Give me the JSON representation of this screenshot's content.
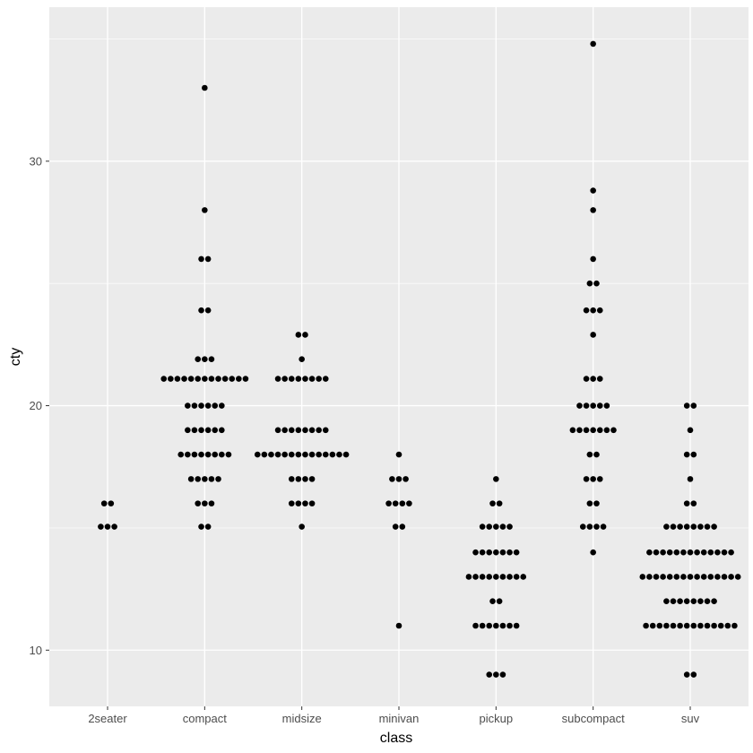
{
  "chart_data": {
    "type": "dotplot",
    "xlabel": "class",
    "ylabel": "cty",
    "categories": [
      "2seater",
      "compact",
      "midsize",
      "minivan",
      "pickup",
      "subcompact",
      "suv"
    ],
    "ylim": [
      7.7,
      36.3
    ],
    "yticks": [
      10,
      20,
      30
    ],
    "grid": true,
    "colors": {
      "panel": "#ebebeb",
      "grid": "#ffffff",
      "dot": "#000000",
      "tick": "#333333"
    },
    "series": [
      {
        "category": "2seater",
        "stacks": [
          {
            "y": 15.05,
            "count": 3
          },
          {
            "y": 16.0,
            "count": 2
          }
        ]
      },
      {
        "category": "compact",
        "stacks": [
          {
            "y": 15.05,
            "count": 2
          },
          {
            "y": 16.0,
            "count": 3
          },
          {
            "y": 17.0,
            "count": 5
          },
          {
            "y": 18.0,
            "count": 8
          },
          {
            "y": 19.0,
            "count": 6
          },
          {
            "y": 20.0,
            "count": 6
          },
          {
            "y": 21.1,
            "count": 13
          },
          {
            "y": 21.9,
            "count": 3
          },
          {
            "y": 23.9,
            "count": 2
          },
          {
            "y": 26.0,
            "count": 2
          },
          {
            "y": 28.0,
            "count": 1
          },
          {
            "y": 33.0,
            "count": 1
          }
        ]
      },
      {
        "category": "midsize",
        "stacks": [
          {
            "y": 15.05,
            "count": 1
          },
          {
            "y": 16.0,
            "count": 4
          },
          {
            "y": 17.0,
            "count": 4
          },
          {
            "y": 18.0,
            "count": 14
          },
          {
            "y": 19.0,
            "count": 8
          },
          {
            "y": 21.1,
            "count": 8
          },
          {
            "y": 21.9,
            "count": 1
          },
          {
            "y": 22.9,
            "count": 2
          }
        ]
      },
      {
        "category": "minivan",
        "stacks": [
          {
            "y": 11.0,
            "count": 1
          },
          {
            "y": 15.05,
            "count": 2
          },
          {
            "y": 16.0,
            "count": 4
          },
          {
            "y": 17.0,
            "count": 3
          },
          {
            "y": 18.0,
            "count": 1
          }
        ]
      },
      {
        "category": "pickup",
        "stacks": [
          {
            "y": 9.0,
            "count": 3
          },
          {
            "y": 11.0,
            "count": 7
          },
          {
            "y": 12.0,
            "count": 2
          },
          {
            "y": 13.0,
            "count": 9
          },
          {
            "y": 14.0,
            "count": 7
          },
          {
            "y": 15.05,
            "count": 5
          },
          {
            "y": 16.0,
            "count": 2
          },
          {
            "y": 17.0,
            "count": 1
          }
        ]
      },
      {
        "category": "subcompact",
        "stacks": [
          {
            "y": 14.0,
            "count": 1
          },
          {
            "y": 15.05,
            "count": 4
          },
          {
            "y": 16.0,
            "count": 2
          },
          {
            "y": 17.0,
            "count": 3
          },
          {
            "y": 18.0,
            "count": 2
          },
          {
            "y": 19.0,
            "count": 7
          },
          {
            "y": 20.0,
            "count": 5
          },
          {
            "y": 21.1,
            "count": 3
          },
          {
            "y": 22.9,
            "count": 1
          },
          {
            "y": 23.9,
            "count": 3
          },
          {
            "y": 25.0,
            "count": 2
          },
          {
            "y": 26.0,
            "count": 1
          },
          {
            "y": 28.0,
            "count": 1
          },
          {
            "y": 28.8,
            "count": 1
          },
          {
            "y": 34.8,
            "count": 1
          }
        ]
      },
      {
        "category": "suv",
        "stacks": [
          {
            "y": 9.0,
            "count": 2
          },
          {
            "y": 11.0,
            "count": 14
          },
          {
            "y": 12.0,
            "count": 8
          },
          {
            "y": 13.0,
            "count": 15
          },
          {
            "y": 14.0,
            "count": 13
          },
          {
            "y": 15.05,
            "count": 8
          },
          {
            "y": 16.0,
            "count": 2
          },
          {
            "y": 17.0,
            "count": 1
          },
          {
            "y": 18.0,
            "count": 2
          },
          {
            "y": 19.0,
            "count": 1
          },
          {
            "y": 20.0,
            "count": 2
          }
        ]
      }
    ]
  }
}
